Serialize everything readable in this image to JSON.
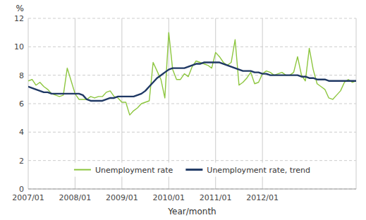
{
  "chart_data": {
    "type": "line",
    "categories": [
      "2007/01",
      null,
      null,
      null,
      null,
      null,
      null,
      null,
      null,
      null,
      null,
      null,
      "2008/01",
      null,
      null,
      null,
      null,
      null,
      null,
      null,
      null,
      null,
      null,
      null,
      "2009/01",
      null,
      null,
      null,
      null,
      null,
      null,
      null,
      null,
      null,
      null,
      null,
      "2010/01",
      null,
      null,
      null,
      null,
      null,
      null,
      null,
      null,
      null,
      null,
      null,
      "2011/01",
      null,
      null,
      null,
      null,
      null,
      null,
      null,
      null,
      null,
      null,
      null,
      "2012/01",
      null,
      null,
      null,
      null,
      null,
      null,
      null,
      null,
      null,
      null,
      null,
      null,
      null,
      null,
      null,
      null,
      null,
      null,
      null,
      null,
      null,
      null,
      null,
      null
    ],
    "series": [
      {
        "name": "Unemployment rate",
        "color": "#8dc63f",
        "values": [
          7.6,
          7.7,
          7.3,
          7.5,
          7.2,
          7.0,
          6.7,
          6.6,
          6.5,
          6.6,
          8.5,
          7.6,
          6.7,
          6.3,
          6.3,
          6.3,
          6.5,
          6.4,
          6.5,
          6.5,
          6.8,
          6.9,
          6.5,
          6.4,
          6.1,
          6.1,
          5.2,
          5.5,
          5.7,
          6.0,
          6.1,
          6.2,
          8.9,
          8.3,
          7.7,
          6.4,
          11.0,
          8.4,
          7.7,
          7.7,
          8.1,
          7.9,
          8.6,
          9.0,
          8.9,
          8.8,
          8.7,
          8.5,
          9.6,
          9.3,
          8.9,
          8.7,
          8.9,
          10.5,
          7.3,
          7.5,
          7.8,
          8.2,
          7.4,
          7.5,
          8.1,
          8.3,
          8.2,
          8.0,
          8.1,
          8.2,
          8.0,
          8.0,
          8.2,
          9.3,
          8.0,
          7.6,
          9.9,
          8.4,
          7.4,
          7.2,
          7.0,
          6.4,
          6.3,
          6.6,
          6.9,
          7.5,
          7.7,
          7.5,
          7.6
        ]
      },
      {
        "name": "Unemployment rate, trend",
        "color": "#1f3864",
        "values": [
          7.2,
          7.1,
          7.0,
          6.9,
          6.8,
          6.8,
          6.7,
          6.7,
          6.7,
          6.7,
          6.7,
          6.7,
          6.7,
          6.7,
          6.6,
          6.3,
          6.2,
          6.2,
          6.2,
          6.2,
          6.3,
          6.4,
          6.4,
          6.5,
          6.5,
          6.5,
          6.5,
          6.5,
          6.6,
          6.7,
          6.9,
          7.2,
          7.5,
          7.8,
          8.0,
          8.2,
          8.4,
          8.5,
          8.5,
          8.5,
          8.5,
          8.6,
          8.7,
          8.8,
          8.8,
          8.9,
          8.9,
          8.9,
          8.9,
          8.9,
          8.8,
          8.7,
          8.6,
          8.5,
          8.4,
          8.3,
          8.3,
          8.3,
          8.2,
          8.2,
          8.1,
          8.1,
          8.0,
          8.0,
          8.0,
          8.0,
          8.0,
          8.0,
          8.0,
          8.0,
          7.9,
          7.9,
          7.8,
          7.8,
          7.7,
          7.7,
          7.7,
          7.6,
          7.6,
          7.6,
          7.6,
          7.6,
          7.6,
          7.6,
          7.6
        ]
      }
    ],
    "y_label": "%",
    "x_label": "Year/month",
    "ylim": [
      0,
      12
    ],
    "yticks": [
      0,
      2,
      4,
      6,
      8,
      10,
      12
    ],
    "grid": true,
    "legend": "bottom"
  }
}
